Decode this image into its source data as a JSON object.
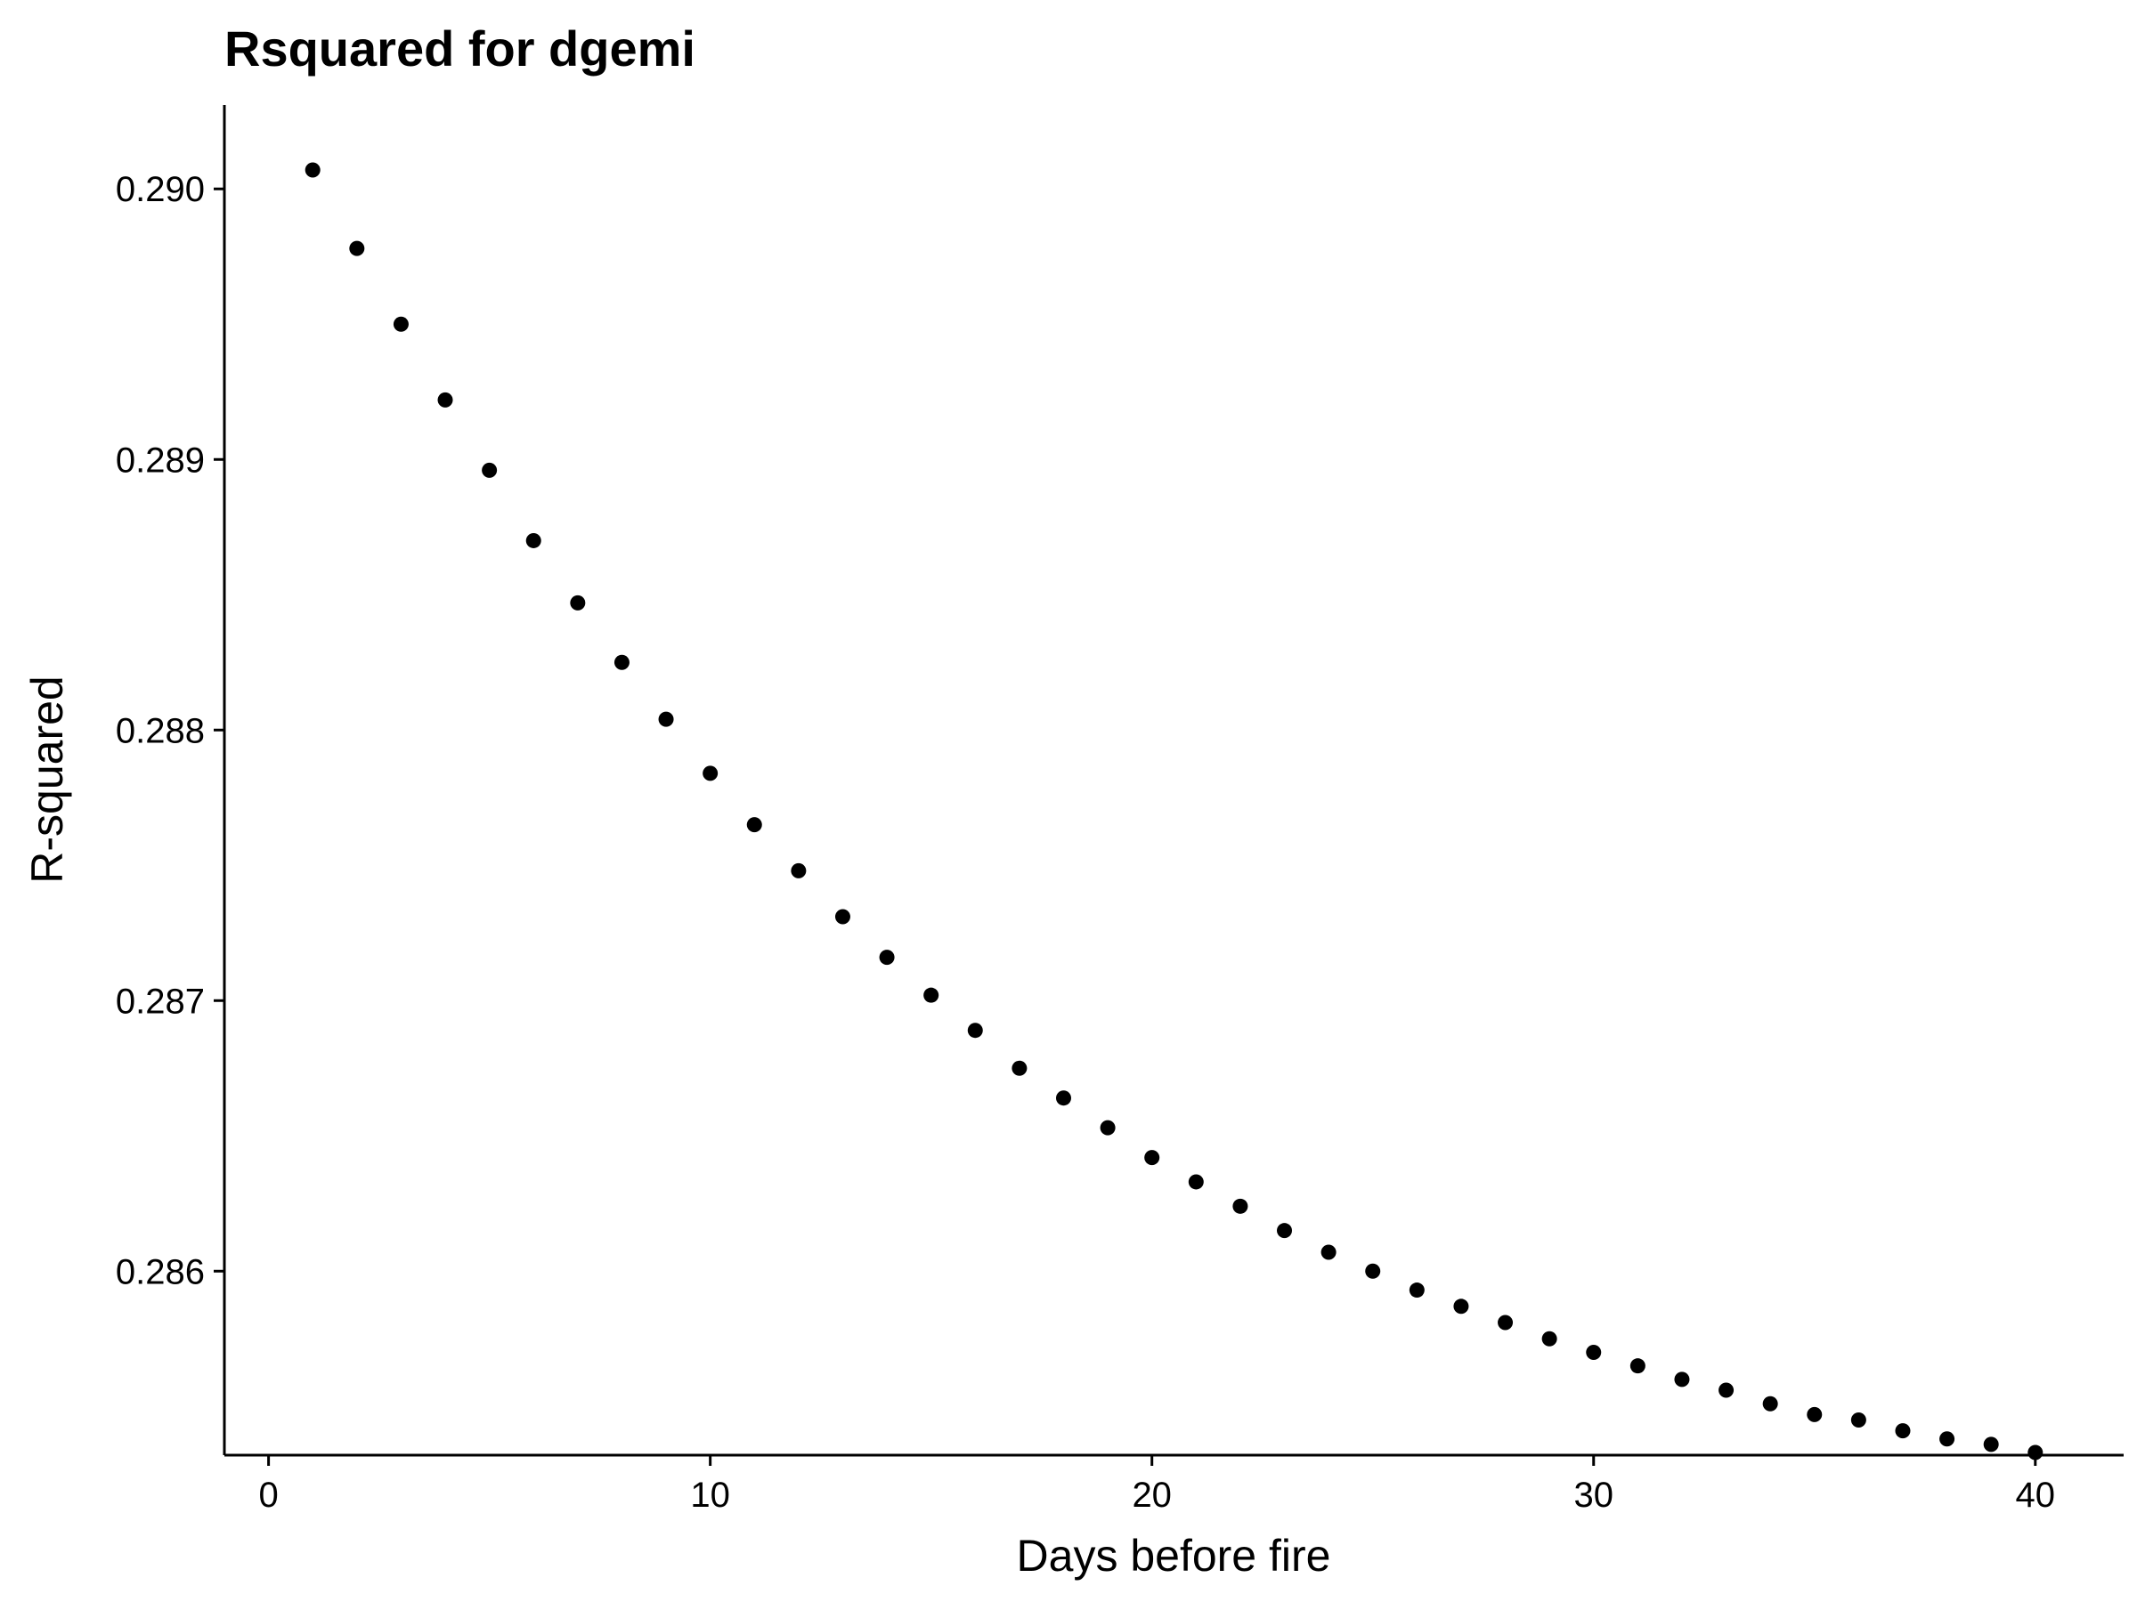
{
  "chart_data": {
    "type": "scatter",
    "title": "Rsquared for dgemi",
    "xlabel": "Days before fire",
    "ylabel": "R-squared",
    "xlim": [
      -1,
      42
    ],
    "ylim": [
      0.28532,
      0.29031
    ],
    "xticks": [
      0,
      10,
      20,
      30,
      40
    ],
    "xtick_labels": [
      "0",
      "10",
      "20",
      "30",
      "40"
    ],
    "yticks": [
      0.286,
      0.287,
      0.288,
      0.289,
      0.29
    ],
    "ytick_labels": [
      "0.286",
      "0.287",
      "0.288",
      "0.289",
      "0.290"
    ],
    "grid": false,
    "legend": "none",
    "point_color": "#000000",
    "series": [
      {
        "x": [
          1,
          2,
          3,
          4,
          5,
          6,
          7,
          8,
          9,
          10,
          11,
          12,
          13,
          14,
          15,
          16,
          17,
          18,
          19,
          20,
          21,
          22,
          23,
          24,
          25,
          26,
          27,
          28,
          29,
          30,
          31,
          32,
          33,
          34,
          35,
          36,
          37,
          38,
          39,
          40
        ],
        "y": [
          0.29007,
          0.28978,
          0.2895,
          0.28922,
          0.28896,
          0.2887,
          0.28847,
          0.28825,
          0.28804,
          0.28784,
          0.28765,
          0.28748,
          0.28731,
          0.28716,
          0.28702,
          0.28689,
          0.28675,
          0.28664,
          0.28653,
          0.28642,
          0.28633,
          0.28624,
          0.28615,
          0.28607,
          0.286,
          0.28593,
          0.28587,
          0.28581,
          0.28575,
          0.2857,
          0.28565,
          0.2856,
          0.28556,
          0.28551,
          0.28547,
          0.28545,
          0.28541,
          0.28538,
          0.28536,
          0.28533
        ]
      }
    ]
  }
}
